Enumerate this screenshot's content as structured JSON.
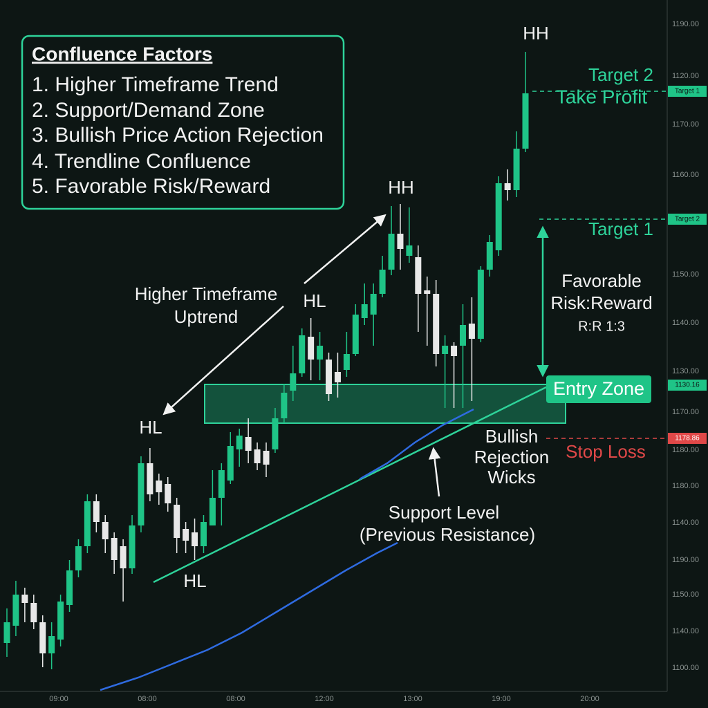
{
  "chart_data": {
    "type": "candlestick",
    "ylim": [
      1100,
      1200
    ],
    "up_color": "#1fc487",
    "down_color": "#e8e8e8",
    "open": [
      1107,
      1109.5,
      1114,
      1112.8,
      1110,
      1105.5,
      1107.5,
      1112.5,
      1117.5,
      1121,
      1127.5,
      1124.5,
      1122.2,
      1121,
      1117.8,
      1124,
      1133,
      1130.5,
      1130,
      1127,
      1123.5,
      1123,
      1121,
      1124,
      1128,
      1130.5,
      1135,
      1136.8,
      1135,
      1134.8,
      1135,
      1139.5,
      1143.5,
      1146,
      1151.3,
      1148,
      1148,
      1146.2,
      1146.5,
      1148.8,
      1154,
      1154.5,
      1157.5,
      1161,
      1166.2,
      1163,
      1162.8,
      1158,
      1157.5,
      1148.8,
      1150,
      1150,
      1153.2,
      1151,
      1161,
      1163.8,
      1173.5,
      1172.5,
      1178.5
    ],
    "high": [
      1112,
      1116,
      1115,
      1114,
      1111,
      1110,
      1114,
      1119,
      1122,
      1128.5,
      1128.5,
      1125.5,
      1123,
      1122,
      1125.5,
      1134,
      1135.2,
      1131.5,
      1131,
      1128,
      1124.5,
      1125,
      1125.5,
      1132,
      1133,
      1137.5,
      1138,
      1139.5,
      1136,
      1136,
      1141,
      1144.5,
      1150,
      1152.5,
      1154,
      1152,
      1149,
      1149,
      1152,
      1156,
      1159,
      1159,
      1163,
      1170.2,
      1170.5,
      1170,
      1164.5,
      1160,
      1159.5,
      1151.5,
      1150.5,
      1156,
      1157,
      1161.5,
      1166,
      1174.5,
      1175.5,
      1181,
      1192.5
    ],
    "low": [
      1105,
      1108,
      1110,
      1109,
      1103.5,
      1103.2,
      1106.5,
      1111.5,
      1116.5,
      1120,
      1123,
      1120,
      1117,
      1113,
      1117,
      1123,
      1127.5,
      1127,
      1126,
      1120,
      1120,
      1119,
      1120,
      1124,
      1124,
      1130,
      1132.5,
      1133,
      1132,
      1131,
      1134.5,
      1138.8,
      1142,
      1145.5,
      1145,
      1145,
      1142,
      1142.5,
      1145.5,
      1148.5,
      1153,
      1150,
      1157,
      1160.2,
      1161,
      1162,
      1152,
      1150,
      1147,
      1141,
      1141,
      1141,
      1142,
      1150.5,
      1160,
      1163,
      1171,
      1171.5,
      1178
    ],
    "close": [
      1110,
      1114,
      1112.8,
      1110,
      1105.5,
      1108,
      1113,
      1117.5,
      1121,
      1127.5,
      1124.5,
      1122,
      1119,
      1117.8,
      1124,
      1133,
      1128.5,
      1128.8,
      1127.2,
      1122.2,
      1121.8,
      1121,
      1124.5,
      1128,
      1132,
      1135.5,
      1137,
      1134.8,
      1133,
      1132.8,
      1139.5,
      1143.2,
      1146,
      1151.5,
      1148,
      1150,
      1143,
      1144.7,
      1148.8,
      1154.5,
      1156,
      1157.5,
      1161,
      1166.2,
      1164,
      1164.5,
      1157.5,
      1157.5,
      1148.8,
      1150,
      1148.5,
      1153,
      1151,
      1161,
      1165,
      1173.5,
      1172.5,
      1178.5,
      1186.5
    ],
    "price_axis_labels": [
      "1190.00",
      "1120.00",
      "1170.00",
      "1160.00",
      "1150.00",
      "1140.00",
      "1130.00",
      "1170.00",
      "1180.00",
      "1180.00",
      "1140.00",
      "1190.00",
      "1150.00",
      "1140.00",
      "1100.00"
    ],
    "time_axis_labels": [
      "09:00",
      "08:00",
      "08:00",
      "12:00",
      "13:00",
      "19:00",
      "20:00"
    ],
    "price_tags": [
      "Target 1",
      "Target 2",
      "1130.16",
      "1178.86"
    ]
  },
  "annotations": {
    "hh_top": "HH",
    "hh_mid": "HH",
    "hl_mid": "HL",
    "hl_left": "HL",
    "hl_bottom": "HL",
    "uptrend_1": "Higher Timeframe",
    "uptrend_2": "Uptrend",
    "target2": "Target 2",
    "take_profit": "Take Profit",
    "target1": "Target 1",
    "rr_1": "Favorable",
    "rr_2": "Risk:Reward",
    "rr_3": "R:R 1:3",
    "entry_zone": "Entry Zone",
    "wicks_1": "Bullish",
    "wicks_2": "Rejection",
    "wicks_3": "Wicks",
    "stop_loss": "Stop Loss",
    "support_1": "Support Level",
    "support_2": "(Previous Resistance)"
  },
  "confluence": {
    "title": "Confluence Factors",
    "items": [
      "1. Higher Timeframe Trend",
      "2. Support/Demand Zone",
      "3. Bullish Price Action Rejection",
      "4. Trendline Confluence",
      "5. Favorable Risk/Reward"
    ]
  }
}
